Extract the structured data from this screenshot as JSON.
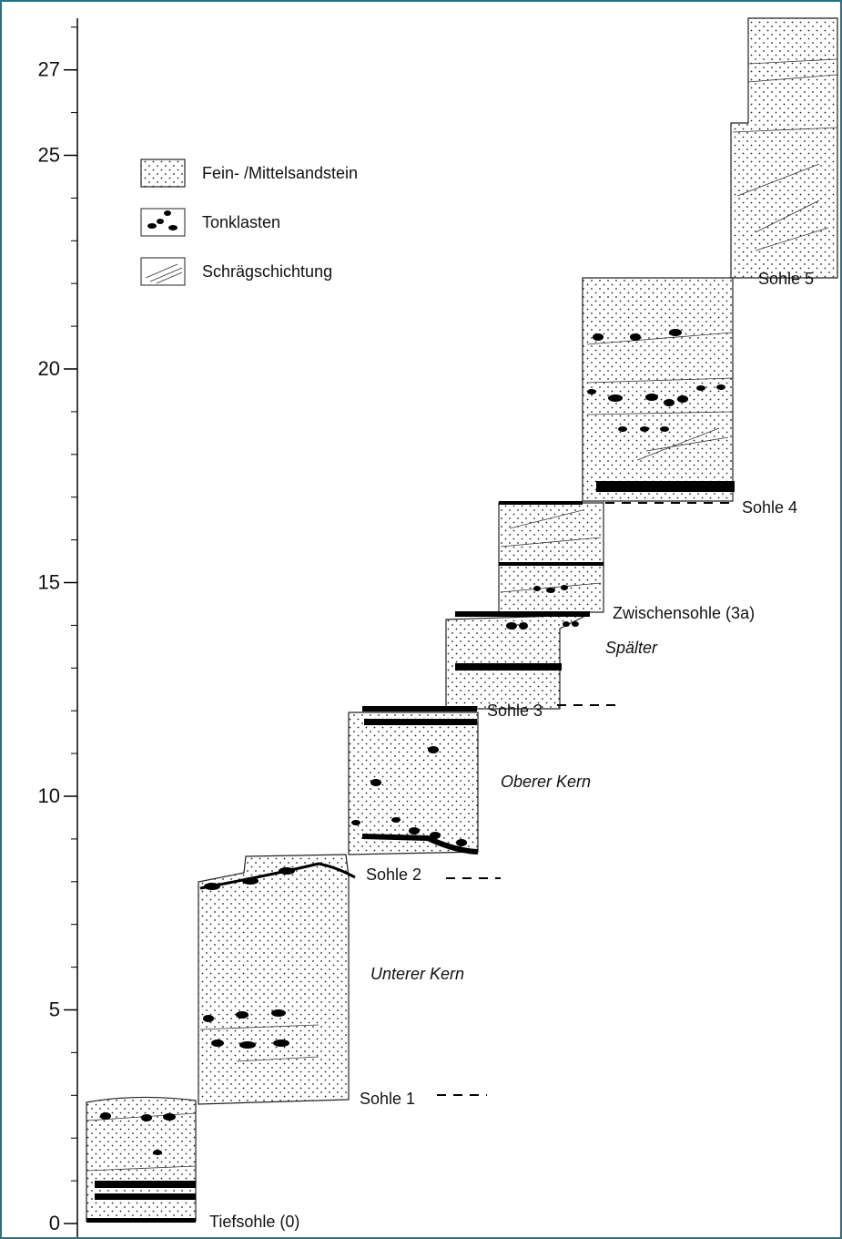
{
  "axis": {
    "ticks": [
      0,
      5,
      10,
      15,
      20,
      25,
      27
    ]
  },
  "legend": {
    "items": [
      {
        "label": "Fein- /Mittelsandstein"
      },
      {
        "label": "Tonklasten"
      },
      {
        "label": "Schrägschichtung"
      }
    ]
  },
  "levels": [
    {
      "label": "Tiefsohle (0)"
    },
    {
      "label": "Sohle 1"
    },
    {
      "label": "Sohle 2"
    },
    {
      "label": "Sohle 3"
    },
    {
      "label": "Zwischensohle (3a)"
    },
    {
      "label": "Sohle 4"
    },
    {
      "label": "Sohle 5"
    }
  ],
  "units": [
    {
      "label": "Unterer Kern"
    },
    {
      "label": "Oberer Kern"
    },
    {
      "label": "Spälter"
    }
  ]
}
